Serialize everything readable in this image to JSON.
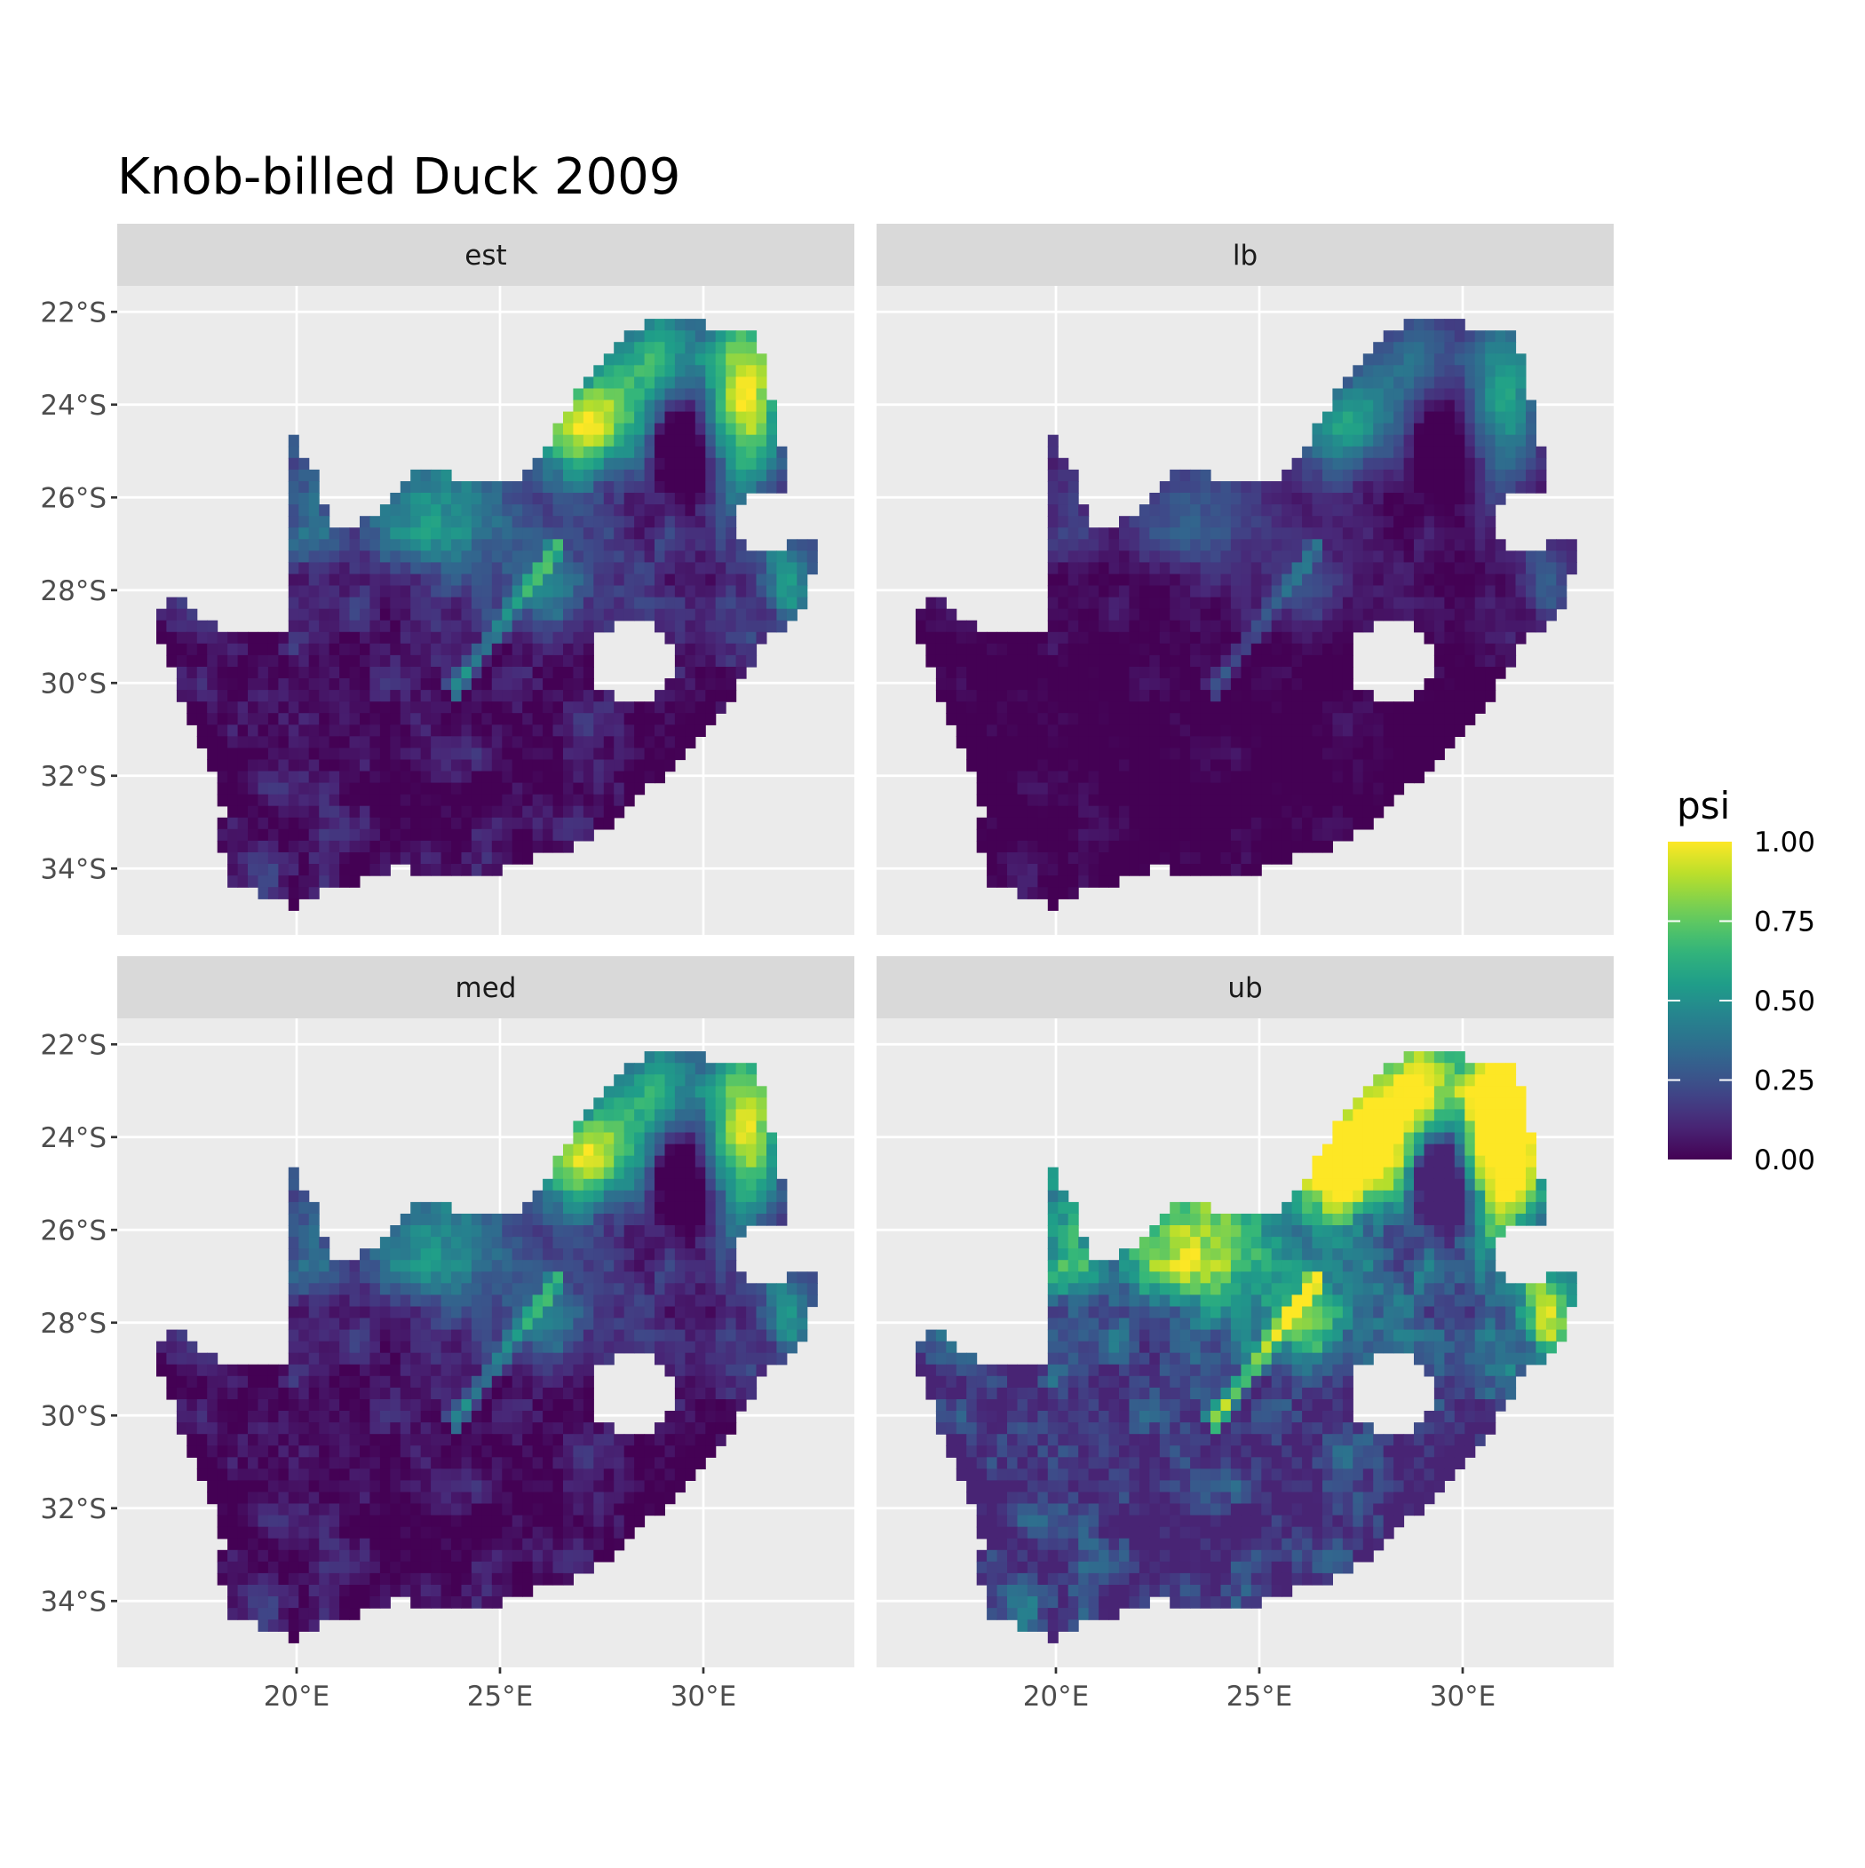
{
  "chart_data": {
    "type": "heatmap",
    "title": "Knob-billed Duck 2009",
    "xlabel": "",
    "ylabel": "",
    "facets": [
      "est",
      "lb",
      "med",
      "ub"
    ],
    "x_ticks": [
      "20°E",
      "25°E",
      "30°E"
    ],
    "x_tick_values": [
      20,
      25,
      30
    ],
    "y_ticks": [
      "22°S",
      "24°S",
      "26°S",
      "28°S",
      "30°S",
      "32°S",
      "34°S"
    ],
    "y_tick_values": [
      -22,
      -24,
      -26,
      -28,
      -30,
      -32,
      -34
    ],
    "xlim": [
      15.6,
      33.7
    ],
    "ylim": [
      -35.4,
      -21.4
    ],
    "grid": true,
    "colorbar": {
      "title": "psi",
      "palette": "viridis",
      "range": [
        0,
        1
      ],
      "ticks": [
        "0.00",
        "0.25",
        "0.50",
        "0.75",
        "1.00"
      ],
      "tick_values": [
        0,
        0.25,
        0.5,
        0.75,
        1
      ],
      "colors": [
        "#440154",
        "#3B528B",
        "#21908C",
        "#5DC863",
        "#FDE725"
      ]
    },
    "legend_position": "right"
  },
  "colors": {
    "panel_background": "#EBEBEB",
    "strip_background": "#D9D9D9",
    "grid": "#FFFFFF"
  }
}
